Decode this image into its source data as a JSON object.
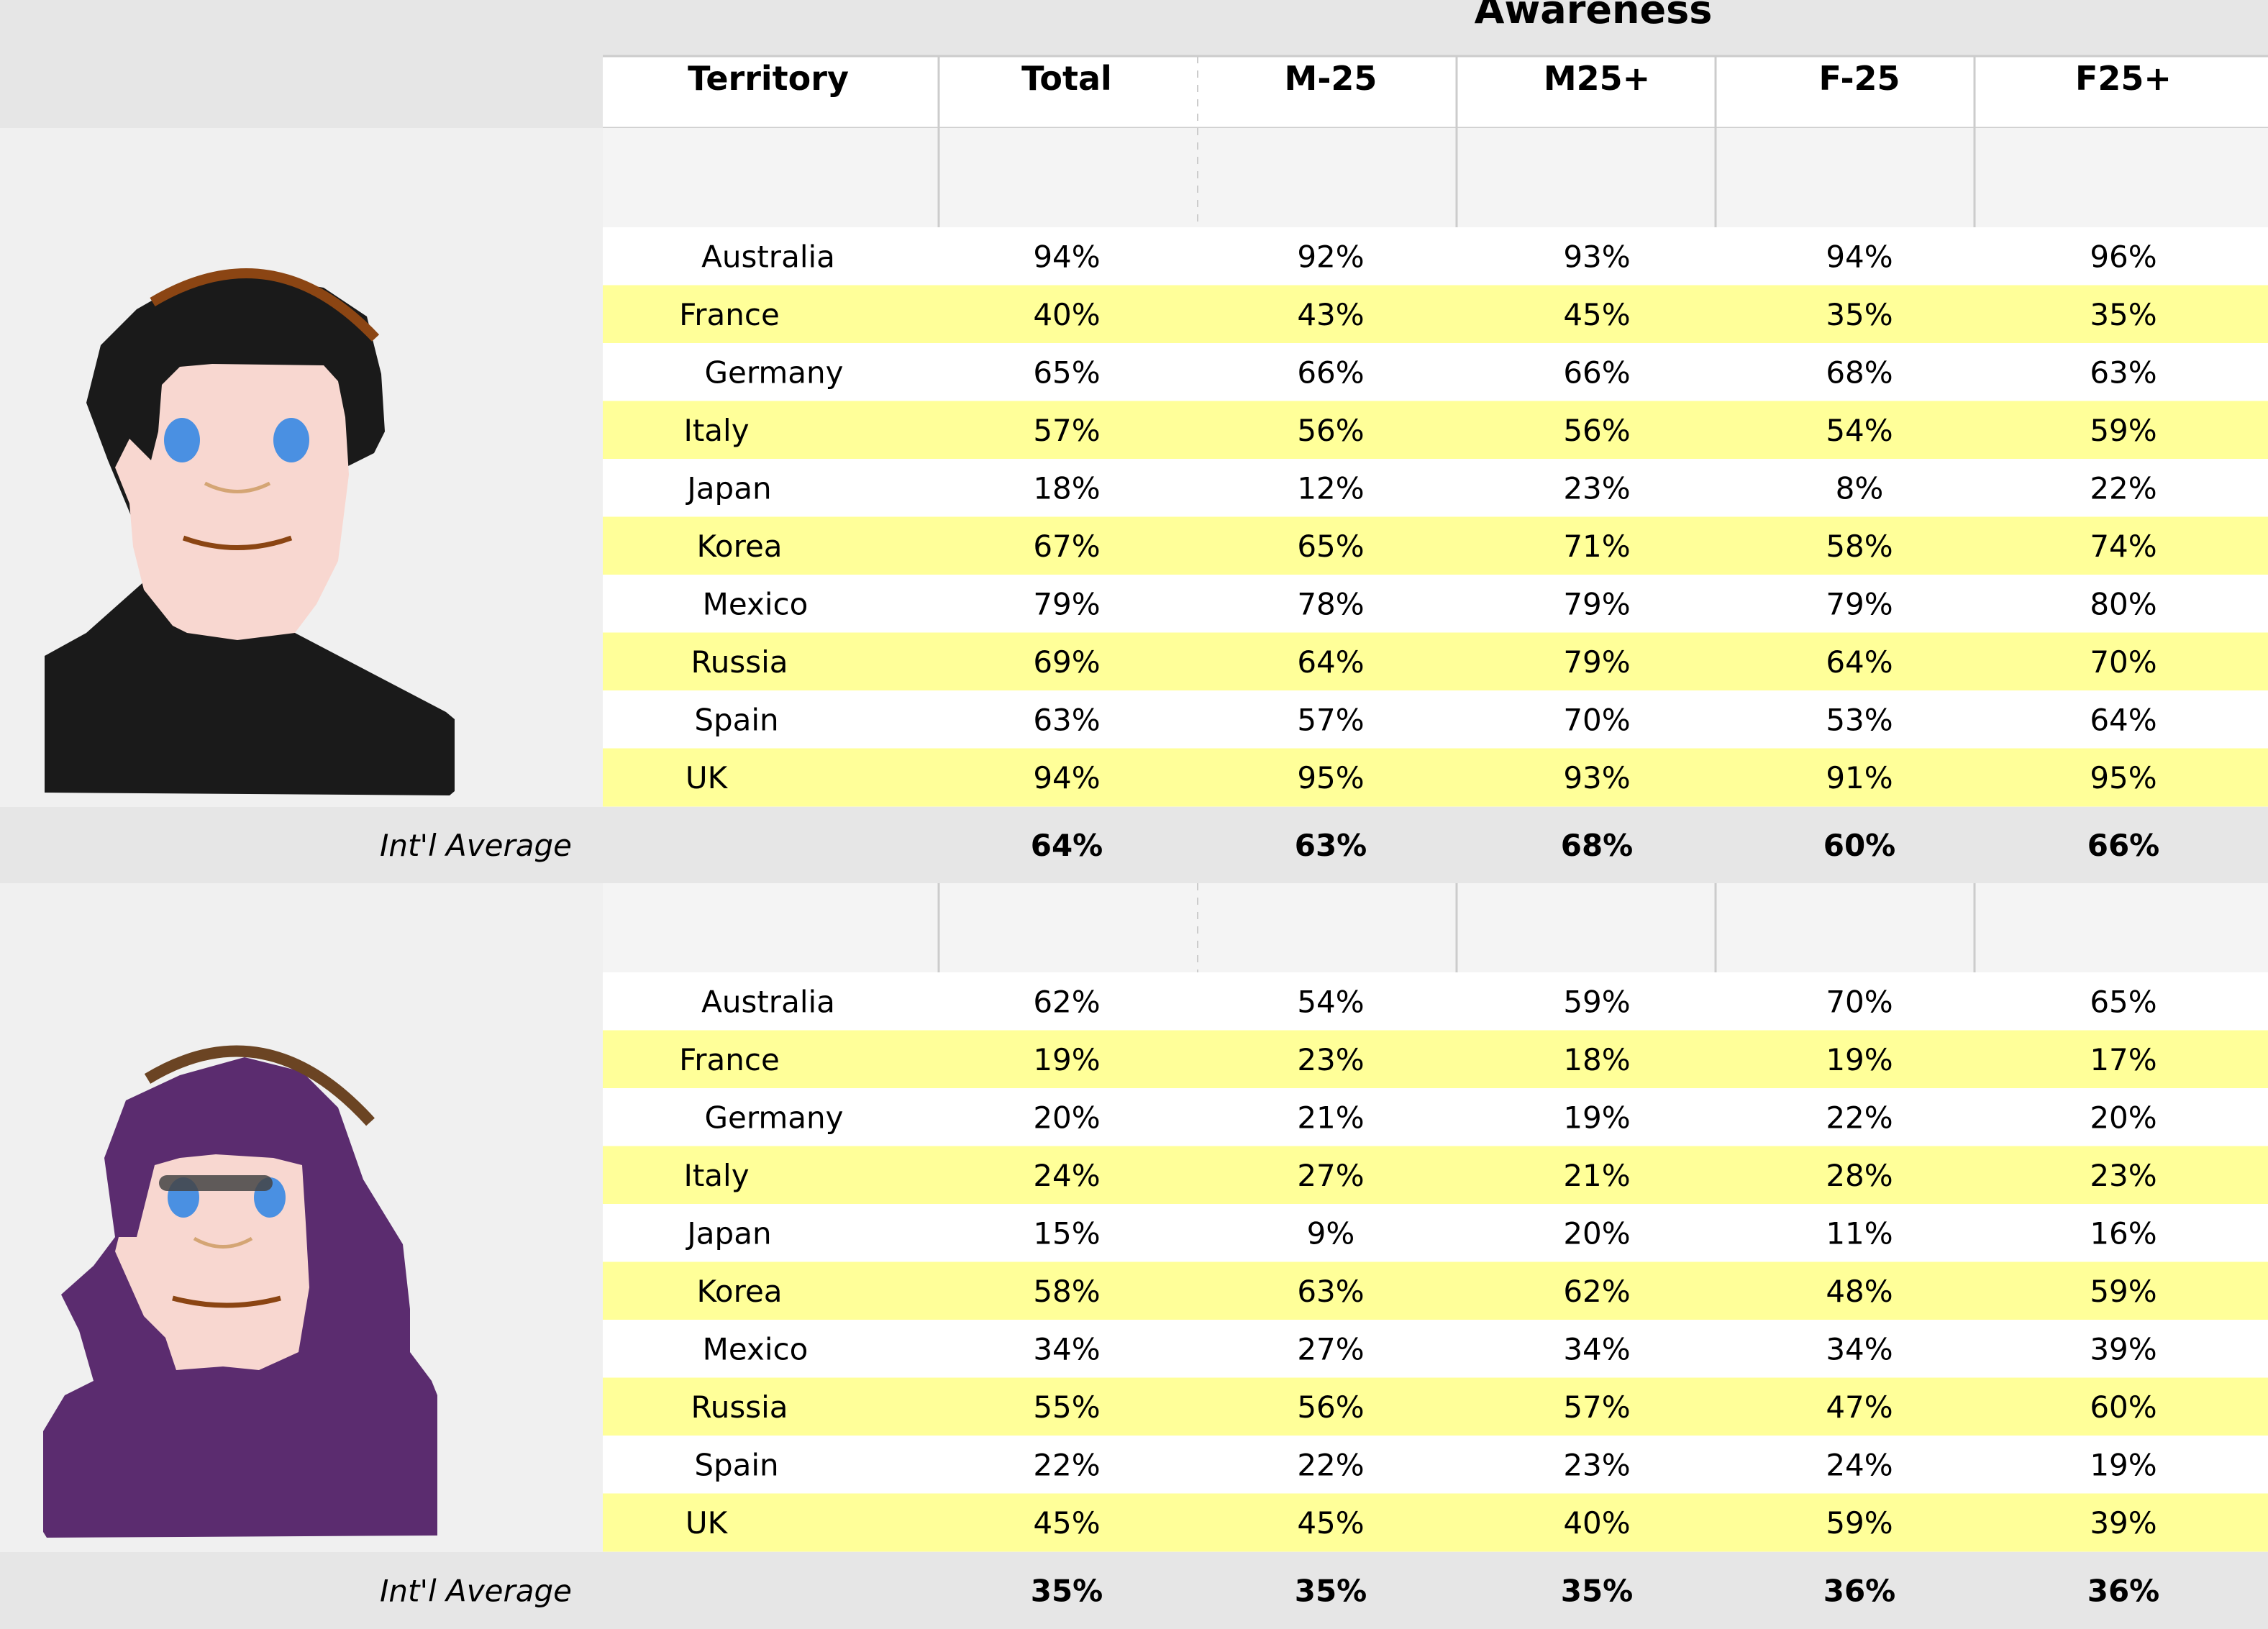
{
  "chart_data": {
    "type": "table",
    "title": "Awareness",
    "columns": [
      "Territory",
      "Total",
      "M-25",
      "M25+",
      "F-25",
      "F25+"
    ],
    "average_label": "Int'l Average",
    "colors": {
      "header_bg": "#e6e6e6",
      "highlight_row": "#ffff99",
      "white_row": "#ffffff",
      "spacer_row": "#f4f4f4",
      "panel_bg": "#f0f0f0",
      "grid_line": "#cccccc"
    },
    "sections": [
      {
        "character": "dark-haired-character",
        "rows": [
          {
            "territory": "Australia",
            "values": [
              "94%",
              "92%",
              "93%",
              "94%",
              "96%"
            ]
          },
          {
            "territory": "France",
            "values": [
              "40%",
              "43%",
              "45%",
              "35%",
              "35%"
            ]
          },
          {
            "territory": "Germany",
            "values": [
              "65%",
              "66%",
              "66%",
              "68%",
              "63%"
            ]
          },
          {
            "territory": "Italy",
            "values": [
              "57%",
              "56%",
              "56%",
              "54%",
              "59%"
            ]
          },
          {
            "territory": "Japan",
            "values": [
              "18%",
              "12%",
              "23%",
              "8%",
              "22%"
            ]
          },
          {
            "territory": "Korea",
            "values": [
              "67%",
              "65%",
              "71%",
              "58%",
              "74%"
            ]
          },
          {
            "territory": "Mexico",
            "values": [
              "79%",
              "78%",
              "79%",
              "79%",
              "80%"
            ]
          },
          {
            "territory": "Russia",
            "values": [
              "69%",
              "64%",
              "79%",
              "64%",
              "70%"
            ]
          },
          {
            "territory": "Spain",
            "values": [
              "63%",
              "57%",
              "70%",
              "53%",
              "64%"
            ]
          },
          {
            "territory": "UK",
            "values": [
              "94%",
              "95%",
              "93%",
              "91%",
              "95%"
            ]
          }
        ],
        "average": [
          "64%",
          "63%",
          "68%",
          "60%",
          "66%"
        ]
      },
      {
        "character": "purple-hooded-character",
        "rows": [
          {
            "territory": "Australia",
            "values": [
              "62%",
              "54%",
              "59%",
              "70%",
              "65%"
            ]
          },
          {
            "territory": "France",
            "values": [
              "19%",
              "23%",
              "18%",
              "19%",
              "17%"
            ]
          },
          {
            "territory": "Germany",
            "values": [
              "20%",
              "21%",
              "19%",
              "22%",
              "20%"
            ]
          },
          {
            "territory": "Italy",
            "values": [
              "24%",
              "27%",
              "21%",
              "28%",
              "23%"
            ]
          },
          {
            "territory": "Japan",
            "values": [
              "15%",
              "9%",
              "20%",
              "11%",
              "16%"
            ]
          },
          {
            "territory": "Korea",
            "values": [
              "58%",
              "63%",
              "62%",
              "48%",
              "59%"
            ]
          },
          {
            "territory": "Mexico",
            "values": [
              "34%",
              "27%",
              "34%",
              "34%",
              "39%"
            ]
          },
          {
            "territory": "Russia",
            "values": [
              "55%",
              "56%",
              "57%",
              "47%",
              "60%"
            ]
          },
          {
            "territory": "Spain",
            "values": [
              "22%",
              "22%",
              "23%",
              "24%",
              "19%"
            ]
          },
          {
            "territory": "UK",
            "values": [
              "45%",
              "45%",
              "40%",
              "59%",
              "39%"
            ]
          }
        ],
        "average": [
          "35%",
          "35%",
          "35%",
          "36%",
          "36%"
        ]
      }
    ]
  }
}
